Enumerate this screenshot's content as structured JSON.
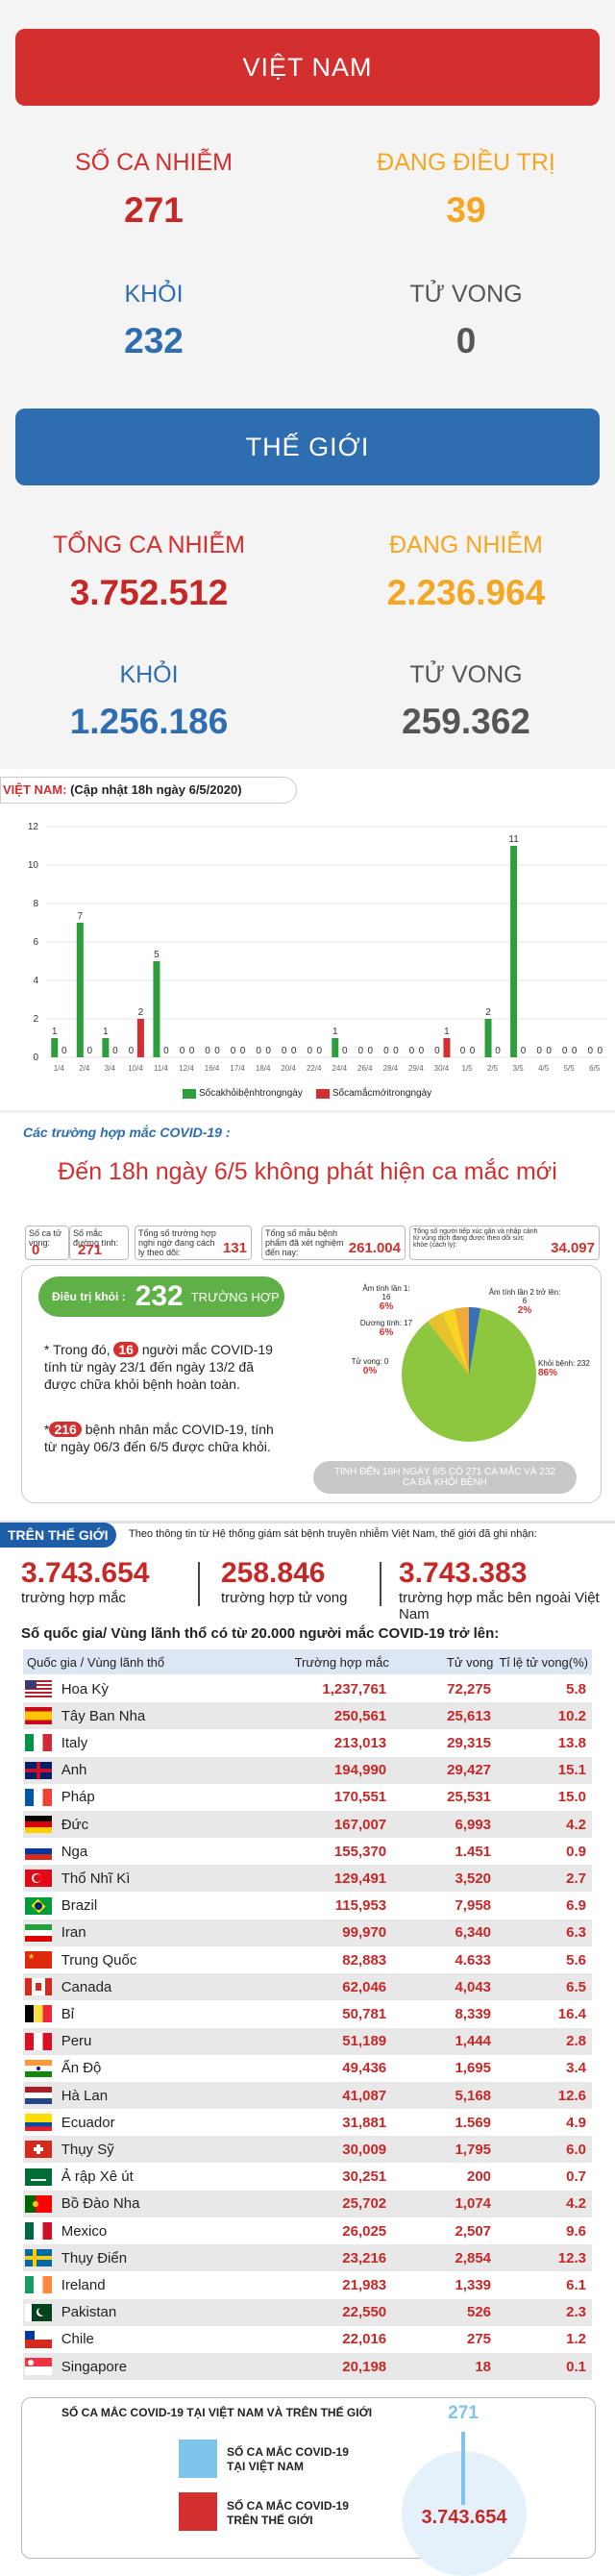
{
  "vietnam": {
    "title": "VIỆT NAM",
    "infected_label": "SỐ CA NHIỄM",
    "infected": "271",
    "treating_label": "ĐANG ĐIỀU TRỊ",
    "treating": "39",
    "recovered_label": "KHỎI",
    "recovered": "232",
    "deaths_label": "TỬ VONG",
    "deaths": "0"
  },
  "world": {
    "title": "THẾ GIỚI",
    "total_label": "TỔNG CA NHIỄM",
    "total": "3.752.512",
    "active_label": "ĐANG NHIỄM",
    "active": "2.236.964",
    "recovered_label": "KHỎI",
    "recovered": "1.256.186",
    "deaths_label": "TỬ VONG",
    "deaths": "259.362"
  },
  "chart_header": {
    "prefix": "VIỆT NAM:",
    "text": " (Cập nhật 18h ngày 6/5/2020)"
  },
  "chart_data": {
    "type": "bar",
    "categories": [
      "1/4",
      "2/4",
      "3/4",
      "10/4",
      "11/4",
      "12/4",
      "16/4",
      "17/4",
      "18/4",
      "20/4",
      "22/4",
      "24/4",
      "26/4",
      "28/4",
      "29/4",
      "30/4",
      "1/5",
      "2/5",
      "3/5",
      "4/5",
      "5/5",
      "6/5"
    ],
    "x_tick_labels": [
      "1/4",
      "2/4",
      "3/4",
      "10/4",
      "11/4",
      "12/4",
      "16/4",
      "17/4",
      "18/4",
      "20/4",
      "22/4",
      "24/4",
      "26/4",
      "28/4",
      "29/4",
      "30/4",
      "1/5",
      "2/5",
      "3/5",
      "4/5",
      "5/5",
      "6/5"
    ],
    "series": [
      {
        "name": "Sốcakhỏibệnhtrongngày",
        "color": "#2e9e3c",
        "values": [
          1,
          7,
          1,
          0,
          5,
          0,
          0,
          0,
          0,
          0,
          0,
          1,
          0,
          0,
          0,
          0,
          0,
          2,
          11,
          0,
          0,
          0
        ]
      },
      {
        "name": "Sốcamắcmớitrongngày",
        "color": "#d32f2f",
        "values": [
          0,
          0,
          0,
          2,
          0,
          0,
          0,
          0,
          0,
          0,
          0,
          0,
          0,
          0,
          0,
          1,
          0,
          0,
          0,
          0,
          0,
          0
        ]
      }
    ],
    "ylim": [
      0,
      12
    ],
    "yticks": [
      "0",
      "2",
      "4",
      "6",
      "8",
      "10",
      "12"
    ],
    "legend_position": "bottom"
  },
  "info_section": {
    "heading": "Các trường hợp mắc COVID-19 :",
    "headline": "Đến 18h ngày 6/5 không phát hiện ca mắc mới",
    "stats": [
      {
        "label": "Số ca tử vong:",
        "value": "0"
      },
      {
        "label": "Số mắc đường tính:",
        "value": "271"
      },
      {
        "label": "Tổng số trường hợp nghi ngờ đang cách ly theo dõi:",
        "value": "131"
      },
      {
        "label": "Tổng số mẫu bệnh phẩm đã xét nghiệm đến nay:",
        "value": "261.004"
      },
      {
        "label": "Tổng số người tiếp xúc gần và nhập cảnh từ vùng dịch đang được theo dõi sức khỏe (cách ly):",
        "value": "34.097"
      }
    ],
    "cured_label": "Điều trị khỏi :",
    "cured_value": "232",
    "cured_unit": "TRƯỜNG HỢP",
    "note1_pre": "* Trong đó, ",
    "note1_num": "16",
    "note1_post": " người mắc COVID-19 tính từ ngày 23/1 đến ngày 13/2 đã được chữa khỏi bệnh hoàn toàn.",
    "note2_pre": "*",
    "note2_num": "216",
    "note2_post": " bệnh nhân mắc COVID-19, tính từ ngày 06/3 đến 6/5 được chữa khỏi.",
    "pie_labels": [
      {
        "label": "Âm tính lần 1: 16",
        "value": "6%"
      },
      {
        "label": "Dương tính: 17",
        "value": "6%"
      },
      {
        "label": "Tử vong: 0",
        "value": "0%"
      },
      {
        "label": "Âm tính lần 2 trở lên: 6",
        "value": "2%"
      },
      {
        "label": "Khỏi bệnh: 232",
        "value": "86%"
      }
    ],
    "pie_footer": "TÍNH ĐẾN 18H NGÀY 6/5 CÓ 271 CA MẮC VÀ 232 CA ĐÃ KHỎI BỆNH"
  },
  "world_section": {
    "tag": "TRÊN THẾ GIỚI",
    "intro": "Theo thông tin từ Hệ thống giám sát bệnh truyền nhiễm Việt Nam, thế giới đã ghi nhận:",
    "figures": [
      {
        "value": "3.743.654",
        "label": "trường hợp mắc"
      },
      {
        "value": "258.846",
        "label": "trường hợp tử vong"
      },
      {
        "value": "3.743.383",
        "label": "trường hợp mắc bên ngoài Việt Nam"
      }
    ],
    "table_title": "Số quốc gia/ Vùng lãnh thổ có từ 20.000 người  mắc COVID-19 trở lên:",
    "headers": [
      "Quốc gia / Vùng lãnh thổ",
      "Trường hợp mắc",
      "Tử vong",
      "Tỉ lệ tử vong(%)"
    ],
    "rows": [
      {
        "country": "Hoa Kỳ",
        "cases": "1,237,761",
        "deaths": "72,275",
        "rate": "5.8",
        "flag": "us"
      },
      {
        "country": "Tây Ban Nha",
        "cases": "250,561",
        "deaths": "25,613",
        "rate": "10.2",
        "flag": "es"
      },
      {
        "country": "Italy",
        "cases": "213,013",
        "deaths": "29,315",
        "rate": "13.8",
        "flag": "it"
      },
      {
        "country": "Anh",
        "cases": "194,990",
        "deaths": "29,427",
        "rate": "15.1",
        "flag": "uk"
      },
      {
        "country": "Pháp",
        "cases": "170,551",
        "deaths": "25,531",
        "rate": "15.0",
        "flag": "fr"
      },
      {
        "country": "Đức",
        "cases": "167,007",
        "deaths": "6,993",
        "rate": "4.2",
        "flag": "de"
      },
      {
        "country": "Nga",
        "cases": "155,370",
        "deaths": "1.451",
        "rate": "0.9",
        "flag": "ru"
      },
      {
        "country": "Thổ Nhĩ Kì",
        "cases": "129,491",
        "deaths": "3,520",
        "rate": "2.7",
        "flag": "tr"
      },
      {
        "country": "Brazil",
        "cases": "115,953",
        "deaths": "7,958",
        "rate": "6.9",
        "flag": "br"
      },
      {
        "country": "Iran",
        "cases": "99,970",
        "deaths": "6,340",
        "rate": "6.3",
        "flag": "ir"
      },
      {
        "country": "Trung Quốc",
        "cases": "82,883",
        "deaths": "4.633",
        "rate": "5.6",
        "flag": "cn"
      },
      {
        "country": "Canada",
        "cases": "62,046",
        "deaths": "4,043",
        "rate": "6.5",
        "flag": "ca"
      },
      {
        "country": "Bỉ",
        "cases": "50,781",
        "deaths": "8,339",
        "rate": "16.4",
        "flag": "be"
      },
      {
        "country": "Peru",
        "cases": "51,189",
        "deaths": "1,444",
        "rate": "2.8",
        "flag": "pe"
      },
      {
        "country": "Ấn Độ",
        "cases": "49,436",
        "deaths": "1,695",
        "rate": "3.4",
        "flag": "in"
      },
      {
        "country": "Hà Lan",
        "cases": "41,087",
        "deaths": "5,168",
        "rate": "12.6",
        "flag": "nl"
      },
      {
        "country": "Ecuador",
        "cases": "31,881",
        "deaths": "1.569",
        "rate": "4.9",
        "flag": "ec"
      },
      {
        "country": "Thụy Sỹ",
        "cases": "30,009",
        "deaths": "1,795",
        "rate": "6.0",
        "flag": "ch"
      },
      {
        "country": "Ả rập Xê út",
        "cases": "30,251",
        "deaths": "200",
        "rate": "0.7",
        "flag": "sa"
      },
      {
        "country": "Bồ Đào Nha",
        "cases": "25,702",
        "deaths": "1,074",
        "rate": "4.2",
        "flag": "pt"
      },
      {
        "country": "Mexico",
        "cases": "26,025",
        "deaths": "2,507",
        "rate": "9.6",
        "flag": "mx"
      },
      {
        "country": "Thụy Điển",
        "cases": "23,216",
        "deaths": "2,854",
        "rate": "12.3",
        "flag": "se"
      },
      {
        "country": "Ireland",
        "cases": "21,983",
        "deaths": "1,339",
        "rate": "6.1",
        "flag": "ie"
      },
      {
        "country": "Pakistan",
        "cases": "22,550",
        "deaths": "526",
        "rate": "2.3",
        "flag": "pk"
      },
      {
        "country": "Chile",
        "cases": "22,016",
        "deaths": "275",
        "rate": "1.2",
        "flag": "cl"
      },
      {
        "country": "Singapore",
        "cases": "20,198",
        "deaths": "18",
        "rate": "0.1",
        "flag": "sg"
      }
    ]
  },
  "comparison": {
    "title": "SỐ CA MẮC COVID-19 TẠI VIỆT NAM VÀ TRÊN THẾ GIỚI",
    "vn_label_1": "SỐ CA MẮC COVID-19",
    "vn_label_2": "TẠI VIỆT NAM",
    "world_label_1": "SỐ CA MẮC COVID-19",
    "world_label_2": "TRÊN THẾ GIỚI",
    "vn_value": "271",
    "world_value": "3.743.654",
    "vn_color": "#7fc4ea",
    "world_color": "#d32f2f"
  },
  "colors": {
    "red": "#c62828",
    "orange": "#f5a623",
    "blue": "#2e6db0",
    "green": "#2e9e3c"
  }
}
